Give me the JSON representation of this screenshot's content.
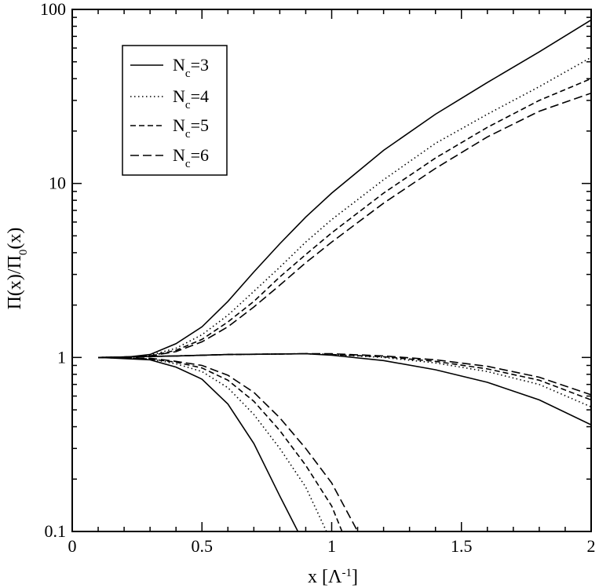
{
  "chart_data": {
    "type": "line",
    "xlabel": "x [Λ",
    "xlabel_sup": "-1",
    "xlabel_end": "]",
    "ylabel": "Π(x)/Π",
    "ylabel_sub": "0",
    "ylabel_end": "(x)",
    "xlim": [
      0,
      2
    ],
    "ylim": [
      0.1,
      100
    ],
    "yscale": "log",
    "x_ticks": [
      0,
      0.5,
      1,
      1.5,
      2
    ],
    "x_tick_labels": [
      "0",
      "0.5",
      "1",
      "1.5",
      "2"
    ],
    "y_ticks": [
      0.1,
      1,
      10,
      100
    ],
    "y_tick_labels": [
      "0.1",
      "1",
      "10",
      "100"
    ],
    "legend_position": "top-left",
    "grid": false,
    "series": [
      {
        "name": "N_c=3",
        "label_main": "N",
        "label_sub": "c",
        "label_rest": "=3",
        "dash": "solid",
        "curves": [
          [
            [
              0.1,
              1.0
            ],
            [
              0.2,
              1.0
            ],
            [
              0.3,
              1.04
            ],
            [
              0.4,
              1.2
            ],
            [
              0.5,
              1.5
            ],
            [
              0.6,
              2.1
            ],
            [
              0.7,
              3.1
            ],
            [
              0.8,
              4.5
            ],
            [
              0.9,
              6.4
            ],
            [
              1.0,
              8.8
            ],
            [
              1.2,
              15.5
            ],
            [
              1.4,
              25
            ],
            [
              1.6,
              38
            ],
            [
              1.8,
              57
            ],
            [
              2.0,
              87
            ]
          ],
          [
            [
              0.1,
              1.0
            ],
            [
              0.4,
              1.02
            ],
            [
              0.6,
              1.04
            ],
            [
              0.9,
              1.05
            ],
            [
              1.0,
              1.03
            ],
            [
              1.2,
              0.96
            ],
            [
              1.4,
              0.85
            ],
            [
              1.6,
              0.72
            ],
            [
              1.8,
              0.57
            ],
            [
              2.0,
              0.41
            ]
          ],
          [
            [
              0.1,
              1.0
            ],
            [
              0.3,
              0.97
            ],
            [
              0.4,
              0.88
            ],
            [
              0.5,
              0.75
            ],
            [
              0.6,
              0.54
            ],
            [
              0.7,
              0.32
            ],
            [
              0.8,
              0.16
            ],
            [
              0.87,
              0.1
            ]
          ]
        ]
      },
      {
        "name": "N_c=4",
        "label_main": "N",
        "label_sub": "c",
        "label_rest": "=4",
        "dash": "dotted",
        "curves": [
          [
            [
              0.1,
              1.0
            ],
            [
              0.2,
              1.0
            ],
            [
              0.3,
              1.03
            ],
            [
              0.4,
              1.13
            ],
            [
              0.5,
              1.35
            ],
            [
              0.6,
              1.75
            ],
            [
              0.7,
              2.4
            ],
            [
              0.8,
              3.3
            ],
            [
              0.9,
              4.6
            ],
            [
              1.0,
              6.2
            ],
            [
              1.2,
              10.5
            ],
            [
              1.4,
              17
            ],
            [
              1.6,
              25
            ],
            [
              1.8,
              36
            ],
            [
              2.0,
              53
            ]
          ],
          [
            [
              0.1,
              1.0
            ],
            [
              0.4,
              1.02
            ],
            [
              0.6,
              1.04
            ],
            [
              0.9,
              1.05
            ],
            [
              1.0,
              1.04
            ],
            [
              1.2,
              1.0
            ],
            [
              1.4,
              0.93
            ],
            [
              1.6,
              0.83
            ],
            [
              1.8,
              0.7
            ],
            [
              2.0,
              0.52
            ]
          ],
          [
            [
              0.1,
              1.0
            ],
            [
              0.3,
              0.98
            ],
            [
              0.4,
              0.92
            ],
            [
              0.5,
              0.83
            ],
            [
              0.6,
              0.67
            ],
            [
              0.7,
              0.47
            ],
            [
              0.8,
              0.3
            ],
            [
              0.9,
              0.18
            ],
            [
              0.98,
              0.1
            ]
          ]
        ]
      },
      {
        "name": "N_c=5",
        "label_main": "N",
        "label_sub": "c",
        "label_rest": "=5",
        "dash": "dashed",
        "curves": [
          [
            [
              0.1,
              1.0
            ],
            [
              0.2,
              1.0
            ],
            [
              0.3,
              1.02
            ],
            [
              0.4,
              1.1
            ],
            [
              0.5,
              1.27
            ],
            [
              0.6,
              1.6
            ],
            [
              0.7,
              2.1
            ],
            [
              0.8,
              2.9
            ],
            [
              0.9,
              3.9
            ],
            [
              1.0,
              5.2
            ],
            [
              1.2,
              8.8
            ],
            [
              1.4,
              14
            ],
            [
              1.6,
              21
            ],
            [
              1.8,
              30
            ],
            [
              2.0,
              40
            ]
          ],
          [
            [
              0.1,
              1.0
            ],
            [
              0.4,
              1.02
            ],
            [
              0.6,
              1.04
            ],
            [
              0.9,
              1.05
            ],
            [
              1.0,
              1.04
            ],
            [
              1.2,
              1.01
            ],
            [
              1.4,
              0.95
            ],
            [
              1.6,
              0.86
            ],
            [
              1.8,
              0.74
            ],
            [
              2.0,
              0.57
            ]
          ],
          [
            [
              0.1,
              1.0
            ],
            [
              0.3,
              0.98
            ],
            [
              0.4,
              0.94
            ],
            [
              0.5,
              0.87
            ],
            [
              0.6,
              0.74
            ],
            [
              0.7,
              0.56
            ],
            [
              0.8,
              0.38
            ],
            [
              0.9,
              0.24
            ],
            [
              1.0,
              0.14
            ],
            [
              1.04,
              0.1
            ]
          ]
        ]
      },
      {
        "name": "N_c=6",
        "label_main": "N",
        "label_sub": "c",
        "label_rest": "=6",
        "dash": "longdash",
        "curves": [
          [
            [
              0.1,
              1.0
            ],
            [
              0.2,
              1.0
            ],
            [
              0.3,
              1.02
            ],
            [
              0.4,
              1.08
            ],
            [
              0.5,
              1.23
            ],
            [
              0.6,
              1.5
            ],
            [
              0.7,
              1.95
            ],
            [
              0.8,
              2.6
            ],
            [
              0.9,
              3.5
            ],
            [
              1.0,
              4.6
            ],
            [
              1.2,
              7.7
            ],
            [
              1.4,
              12.2
            ],
            [
              1.6,
              18.5
            ],
            [
              1.8,
              26
            ],
            [
              2.0,
              33
            ]
          ],
          [
            [
              0.1,
              1.0
            ],
            [
              0.4,
              1.02
            ],
            [
              0.6,
              1.04
            ],
            [
              0.9,
              1.05
            ],
            [
              1.0,
              1.05
            ],
            [
              1.2,
              1.02
            ],
            [
              1.4,
              0.97
            ],
            [
              1.6,
              0.89
            ],
            [
              1.8,
              0.77
            ],
            [
              2.0,
              0.61
            ]
          ],
          [
            [
              0.1,
              1.0
            ],
            [
              0.3,
              0.99
            ],
            [
              0.4,
              0.95
            ],
            [
              0.5,
              0.9
            ],
            [
              0.6,
              0.79
            ],
            [
              0.7,
              0.63
            ],
            [
              0.8,
              0.45
            ],
            [
              0.9,
              0.3
            ],
            [
              1.0,
              0.19
            ],
            [
              1.1,
              0.1
            ]
          ]
        ]
      }
    ]
  }
}
